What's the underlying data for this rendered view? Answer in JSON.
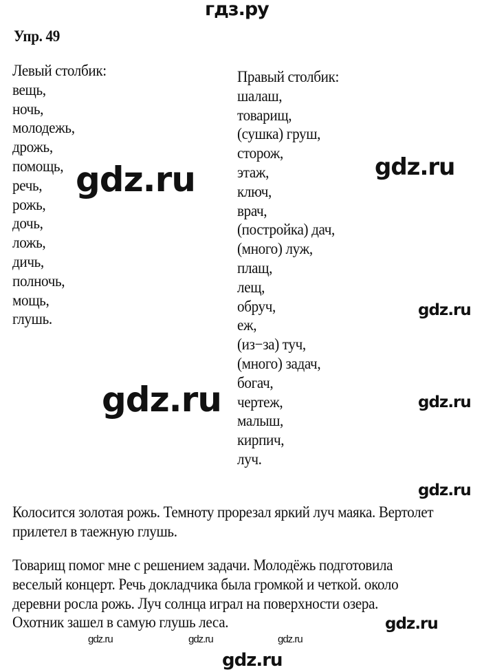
{
  "header": {
    "site": "гдз.ру",
    "title": "Упр. 49"
  },
  "left_column": {
    "heading": "Левый столбик:",
    "items": [
      "вещь,",
      "ночь,",
      "молодежь,",
      "дрожь,",
      "помощь,",
      "речь,",
      "рожь,",
      "дочь,",
      "ложь,",
      "дичь,",
      "полночь,",
      "мощь,",
      "глушь."
    ]
  },
  "right_column": {
    "heading": "Правый столбик:",
    "items": [
      "шалаш,",
      "товарищ,",
      "(сушка) груш,",
      "сторож,",
      "этаж,",
      "ключ,",
      "врач,",
      "(постройка) дач,",
      "(много) луж,",
      "плащ,",
      "лещ,",
      "обруч,",
      "еж,",
      "(из−за) туч,",
      "(много) задач,",
      "богач,",
      "чертеж,",
      "малыш,",
      "кирпич,",
      "луч."
    ]
  },
  "paragraphs": [
    [
      "Колосится золотая рожь. Темноту прорезал яркий луч маяка. Вертолет",
      "прилетел в таежную глушь."
    ],
    [
      "Товарищ помог мне с решением задачи. Молодёжь подготовила",
      "веселый концерт. Речь докладчика была громкой и четкой. около",
      "деревни росла  рожь. Луч солнца играл на поверхности озера.",
      "Охотник зашел в самую глушь леса."
    ]
  ],
  "watermark": "gdz.ru"
}
